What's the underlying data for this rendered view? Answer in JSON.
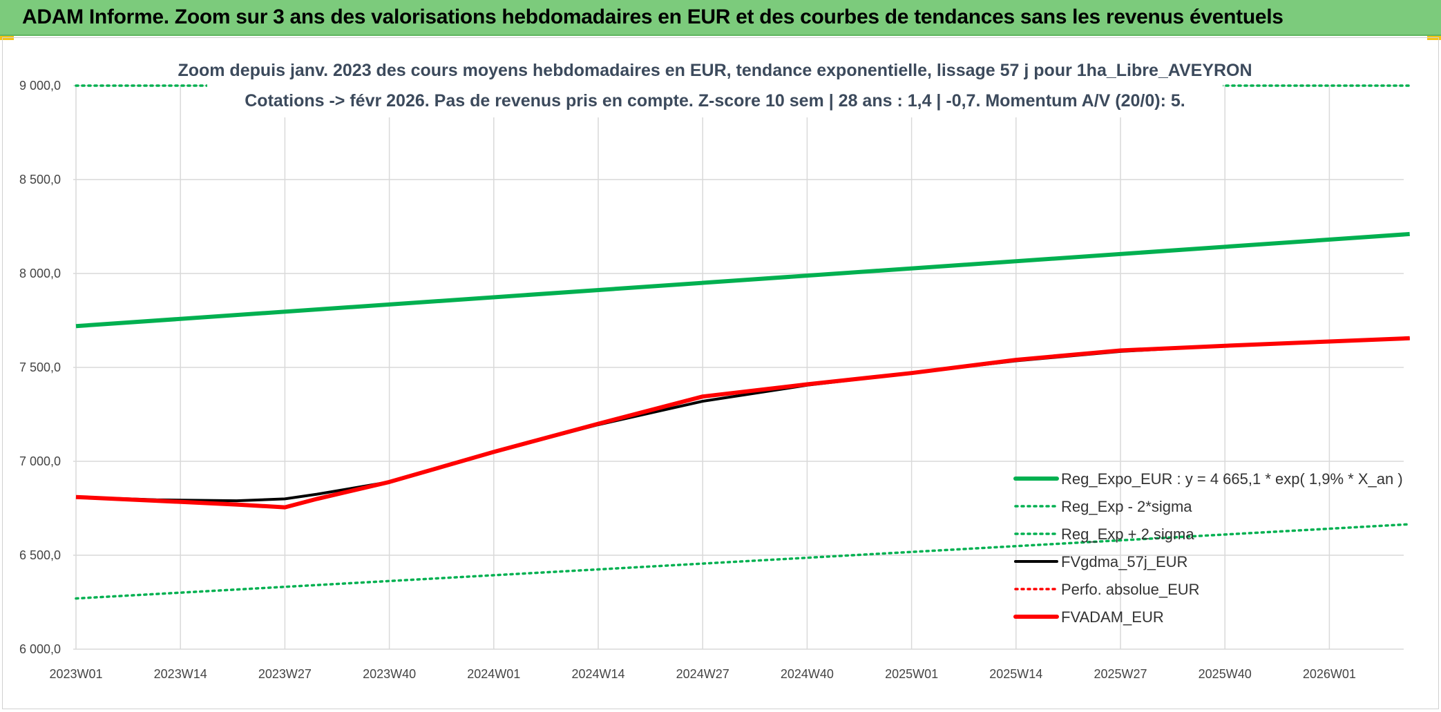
{
  "banner": {
    "title": "ADAM Informe. Zoom sur 3 ans des valorisations hebdomadaires en EUR et des courbes de tendances sans les revenus éventuels"
  },
  "colors": {
    "banner_bg": "#7ccb7c",
    "reg_expo": "#00b050",
    "fvgdma": "#000000",
    "fvadam": "#ff0000",
    "perfo": "#ff0000"
  },
  "chart_data": {
    "type": "line",
    "title_lines": [
      "Zoom depuis janv. 2023 des cours moyens hebdomadaires en EUR, tendance exponentielle, lissage 57 j pour 1ha_Libre_AVEYRON",
      "Cotations -> févr 2026. Pas de revenus pris en compte. Z-score 10 sem | 28 ans : 1,4 | -0,7. Momentum A/V (20/0): 5."
    ],
    "ylim": [
      6000,
      9000
    ],
    "yticks": [
      "6 000,0",
      "6 500,0",
      "7 000,0",
      "7 500,0",
      "8 000,0",
      "8 500,0",
      "9 000,0"
    ],
    "ytick_values": [
      6000,
      6500,
      7000,
      7500,
      8000,
      8500,
      9000
    ],
    "xticks": [
      "2023W01",
      "2023W14",
      "2023W27",
      "2023W40",
      "2024W01",
      "2024W14",
      "2024W27",
      "2024W40",
      "2025W01",
      "2025W14",
      "2025W27",
      "2025W40",
      "2026W01"
    ],
    "week_range": [
      0,
      166
    ],
    "grid": true,
    "legend_position": "right",
    "series": [
      {
        "name": "Reg_Expo_EUR : y = 4 665,1 * exp( 1,9% *  X_an )",
        "style": "solid-thick",
        "color": "#00b050",
        "points": [
          [
            0,
            7720
          ],
          [
            166,
            8210
          ]
        ]
      },
      {
        "name": "Reg_Exp - 2*sigma",
        "style": "dotted",
        "color": "#00b050",
        "points": [
          [
            0,
            6270
          ],
          [
            166,
            6665
          ]
        ]
      },
      {
        "name": "Reg_Exp + 2 sigma",
        "style": "dotted",
        "color": "#00b050",
        "points": [
          [
            0,
            9000
          ],
          [
            166,
            9000
          ]
        ]
      },
      {
        "name": "FVgdma_57j_EUR",
        "style": "solid",
        "color": "#000000",
        "points": [
          [
            0,
            6810
          ],
          [
            10,
            6795
          ],
          [
            20,
            6790
          ],
          [
            26,
            6800
          ],
          [
            30,
            6825
          ],
          [
            39,
            6890
          ],
          [
            52,
            7050
          ],
          [
            65,
            7195
          ],
          [
            78,
            7320
          ],
          [
            91,
            7405
          ],
          [
            104,
            7470
          ],
          [
            117,
            7535
          ],
          [
            130,
            7585
          ],
          [
            143,
            7615
          ],
          [
            156,
            7638
          ],
          [
            166,
            7655
          ]
        ]
      },
      {
        "name": "Perfo. absolue_EUR",
        "style": "dotted",
        "color": "#ff0000",
        "points": []
      },
      {
        "name": "FVADAM_EUR",
        "style": "solid-thick",
        "color": "#ff0000",
        "points": [
          [
            0,
            6810
          ],
          [
            10,
            6790
          ],
          [
            20,
            6770
          ],
          [
            26,
            6755
          ],
          [
            30,
            6800
          ],
          [
            39,
            6890
          ],
          [
            52,
            7050
          ],
          [
            65,
            7200
          ],
          [
            78,
            7345
          ],
          [
            91,
            7410
          ],
          [
            104,
            7470
          ],
          [
            117,
            7540
          ],
          [
            130,
            7590
          ],
          [
            143,
            7615
          ],
          [
            156,
            7638
          ],
          [
            166,
            7655
          ]
        ]
      }
    ]
  }
}
